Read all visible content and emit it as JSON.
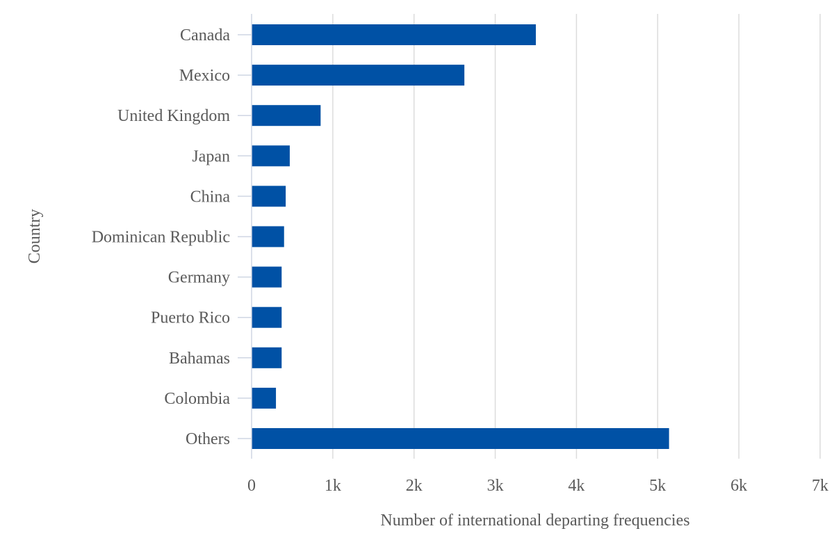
{
  "chart_data": {
    "type": "bar",
    "orientation": "horizontal",
    "categories": [
      "Canada",
      "Mexico",
      "United Kingdom",
      "Japan",
      "China",
      "Dominican Republic",
      "Germany",
      "Puerto Rico",
      "Bahamas",
      "Colombia",
      "Others"
    ],
    "values": [
      3500,
      2620,
      850,
      470,
      420,
      400,
      370,
      370,
      370,
      300,
      5140
    ],
    "xlabel": "Number of international departing frequencies",
    "ylabel": "Country",
    "xlim": [
      0,
      7000
    ],
    "x_ticks": [
      0,
      1000,
      2000,
      3000,
      4000,
      5000,
      6000,
      7000
    ],
    "x_tick_labels": [
      "0",
      "1k",
      "2k",
      "3k",
      "4k",
      "5k",
      "6k",
      "7k"
    ],
    "grid": true,
    "bar_color": "#0051a5"
  }
}
